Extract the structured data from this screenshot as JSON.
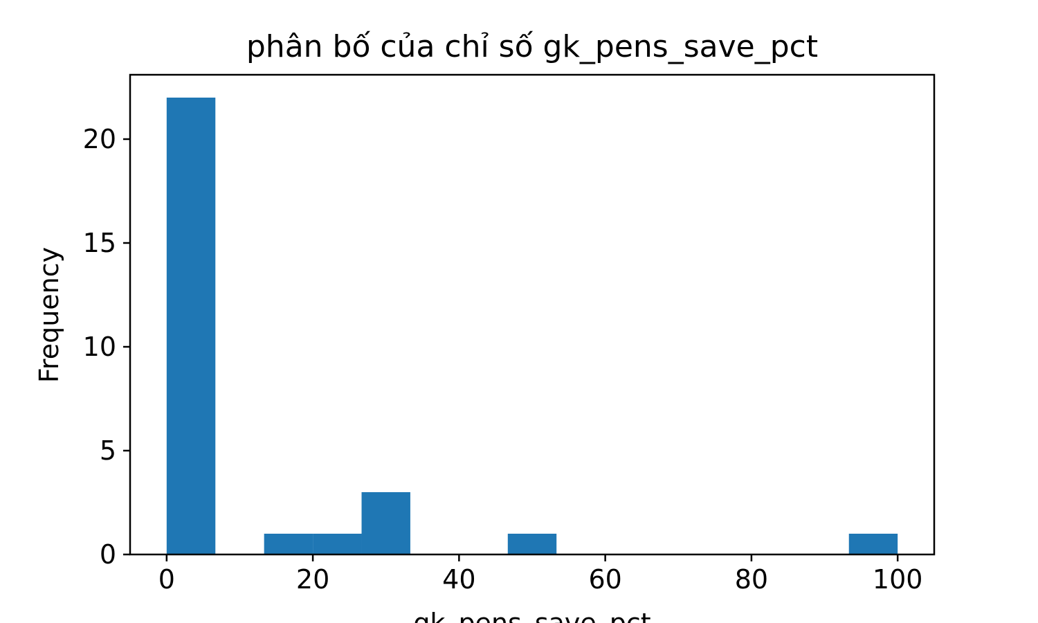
{
  "chart_data": {
    "type": "bar",
    "title": "phân bố của chỉ số gk_pens_save_pct",
    "xlabel": "gk_pens_save_pct",
    "ylabel": "Frequency",
    "bins": [
      {
        "x0": 0,
        "x1": 6.667,
        "count": 22
      },
      {
        "x0": 6.667,
        "x1": 13.333,
        "count": 0
      },
      {
        "x0": 13.333,
        "x1": 20,
        "count": 1
      },
      {
        "x0": 20,
        "x1": 26.667,
        "count": 1
      },
      {
        "x0": 26.667,
        "x1": 33.333,
        "count": 3
      },
      {
        "x0": 33.333,
        "x1": 40,
        "count": 0
      },
      {
        "x0": 40,
        "x1": 46.667,
        "count": 0
      },
      {
        "x0": 46.667,
        "x1": 53.333,
        "count": 1
      },
      {
        "x0": 53.333,
        "x1": 60,
        "count": 0
      },
      {
        "x0": 60,
        "x1": 66.667,
        "count": 0
      },
      {
        "x0": 66.667,
        "x1": 73.333,
        "count": 0
      },
      {
        "x0": 73.333,
        "x1": 80,
        "count": 0
      },
      {
        "x0": 80,
        "x1": 86.667,
        "count": 0
      },
      {
        "x0": 86.667,
        "x1": 93.333,
        "count": 0
      },
      {
        "x0": 93.333,
        "x1": 100,
        "count": 1
      }
    ],
    "xlim": [
      -5,
      105
    ],
    "ylim": [
      0,
      23.1
    ],
    "xticks": [
      0,
      20,
      40,
      60,
      80,
      100
    ],
    "yticks": [
      0,
      5,
      10,
      15,
      20
    ],
    "bar_color": "#1f77b4",
    "grid": false
  }
}
